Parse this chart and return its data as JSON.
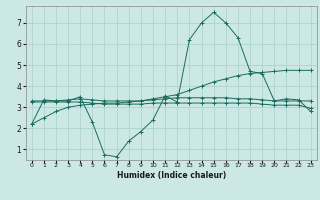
{
  "xlabel": "Humidex (Indice chaleur)",
  "background_color": "#cce8e4",
  "grid_color": "#aacfcb",
  "line_color": "#1a6b5e",
  "xlim": [
    -0.5,
    23.5
  ],
  "ylim": [
    0.5,
    7.8
  ],
  "yticks": [
    1,
    2,
    3,
    4,
    5,
    6,
    7
  ],
  "xticks": [
    0,
    1,
    2,
    3,
    4,
    5,
    6,
    7,
    8,
    9,
    10,
    11,
    12,
    13,
    14,
    15,
    16,
    17,
    18,
    19,
    20,
    21,
    22,
    23
  ],
  "line1_x": [
    0,
    1,
    2,
    3,
    4,
    5,
    6,
    7,
    8,
    9,
    10,
    11,
    12,
    13,
    14,
    15,
    16,
    17,
    18,
    19,
    20,
    21,
    22,
    23
  ],
  "line1_y": [
    2.2,
    3.35,
    3.3,
    3.3,
    3.5,
    2.3,
    0.75,
    0.65,
    1.4,
    1.85,
    2.4,
    3.55,
    3.25,
    6.2,
    7.0,
    7.5,
    7.0,
    6.3,
    4.7,
    4.6,
    3.3,
    3.4,
    3.35,
    2.8
  ],
  "line2_x": [
    0,
    1,
    2,
    3,
    4,
    5,
    6,
    7,
    8,
    9,
    10,
    11,
    12,
    13,
    14,
    15,
    16,
    17,
    18,
    19,
    20,
    21,
    22,
    23
  ],
  "line2_y": [
    3.3,
    3.3,
    3.3,
    3.35,
    3.4,
    3.35,
    3.3,
    3.3,
    3.3,
    3.3,
    3.35,
    3.4,
    3.45,
    3.45,
    3.45,
    3.45,
    3.45,
    3.4,
    3.4,
    3.35,
    3.3,
    3.3,
    3.3,
    3.3
  ],
  "line3_x": [
    0,
    1,
    2,
    3,
    4,
    5,
    6,
    7,
    8,
    9,
    10,
    11,
    12,
    13,
    14,
    15,
    16,
    17,
    18,
    19,
    20,
    21,
    22,
    23
  ],
  "line3_y": [
    3.25,
    3.25,
    3.25,
    3.25,
    3.25,
    3.2,
    3.15,
    3.15,
    3.15,
    3.15,
    3.2,
    3.2,
    3.2,
    3.2,
    3.2,
    3.2,
    3.2,
    3.2,
    3.2,
    3.15,
    3.1,
    3.1,
    3.1,
    2.95
  ],
  "line4_x": [
    0,
    1,
    2,
    3,
    4,
    5,
    6,
    7,
    8,
    9,
    10,
    11,
    12,
    13,
    14,
    15,
    16,
    17,
    18,
    19,
    20,
    21,
    22,
    23
  ],
  "line4_y": [
    2.2,
    2.5,
    2.8,
    3.0,
    3.1,
    3.15,
    3.2,
    3.2,
    3.25,
    3.3,
    3.4,
    3.5,
    3.6,
    3.8,
    4.0,
    4.2,
    4.35,
    4.5,
    4.6,
    4.65,
    4.7,
    4.75,
    4.75,
    4.75
  ]
}
